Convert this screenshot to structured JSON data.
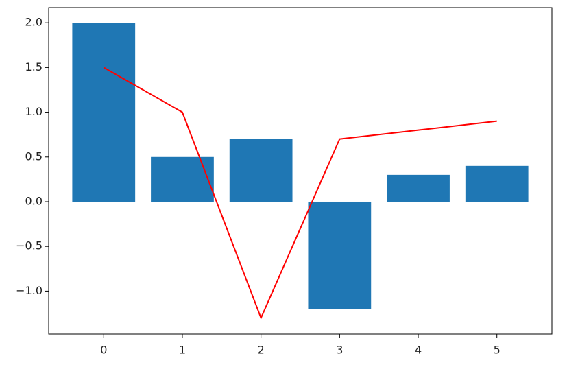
{
  "chart_data": {
    "type": "bar",
    "x": [
      0,
      1,
      2,
      3,
      4,
      5
    ],
    "series": [
      {
        "type": "bar",
        "color": "#1f77b4",
        "values": [
          2.0,
          0.5,
          0.7,
          -1.2,
          0.3,
          0.4
        ]
      },
      {
        "type": "line",
        "color": "#ff0000",
        "values": [
          1.5,
          1.0,
          -1.3,
          0.7,
          0.8,
          0.9
        ]
      }
    ],
    "bar_width": 0.8,
    "xlim": [
      -0.7,
      5.7
    ],
    "ylim": [
      -1.48,
      2.17
    ],
    "xticks": [
      0,
      1,
      2,
      3,
      4,
      5
    ],
    "yticks": [
      {
        "value": -1.0,
        "label": "−1.0"
      },
      {
        "value": -0.5,
        "label": "−0.5"
      },
      {
        "value": 0,
        "label": "0.0"
      },
      {
        "value": 0.5,
        "label": "0.5"
      },
      {
        "value": 1.0,
        "label": "1.0"
      },
      {
        "value": 1.5,
        "label": "1.5"
      },
      {
        "value": 2.0,
        "label": "2.0"
      }
    ],
    "grid": false
  }
}
